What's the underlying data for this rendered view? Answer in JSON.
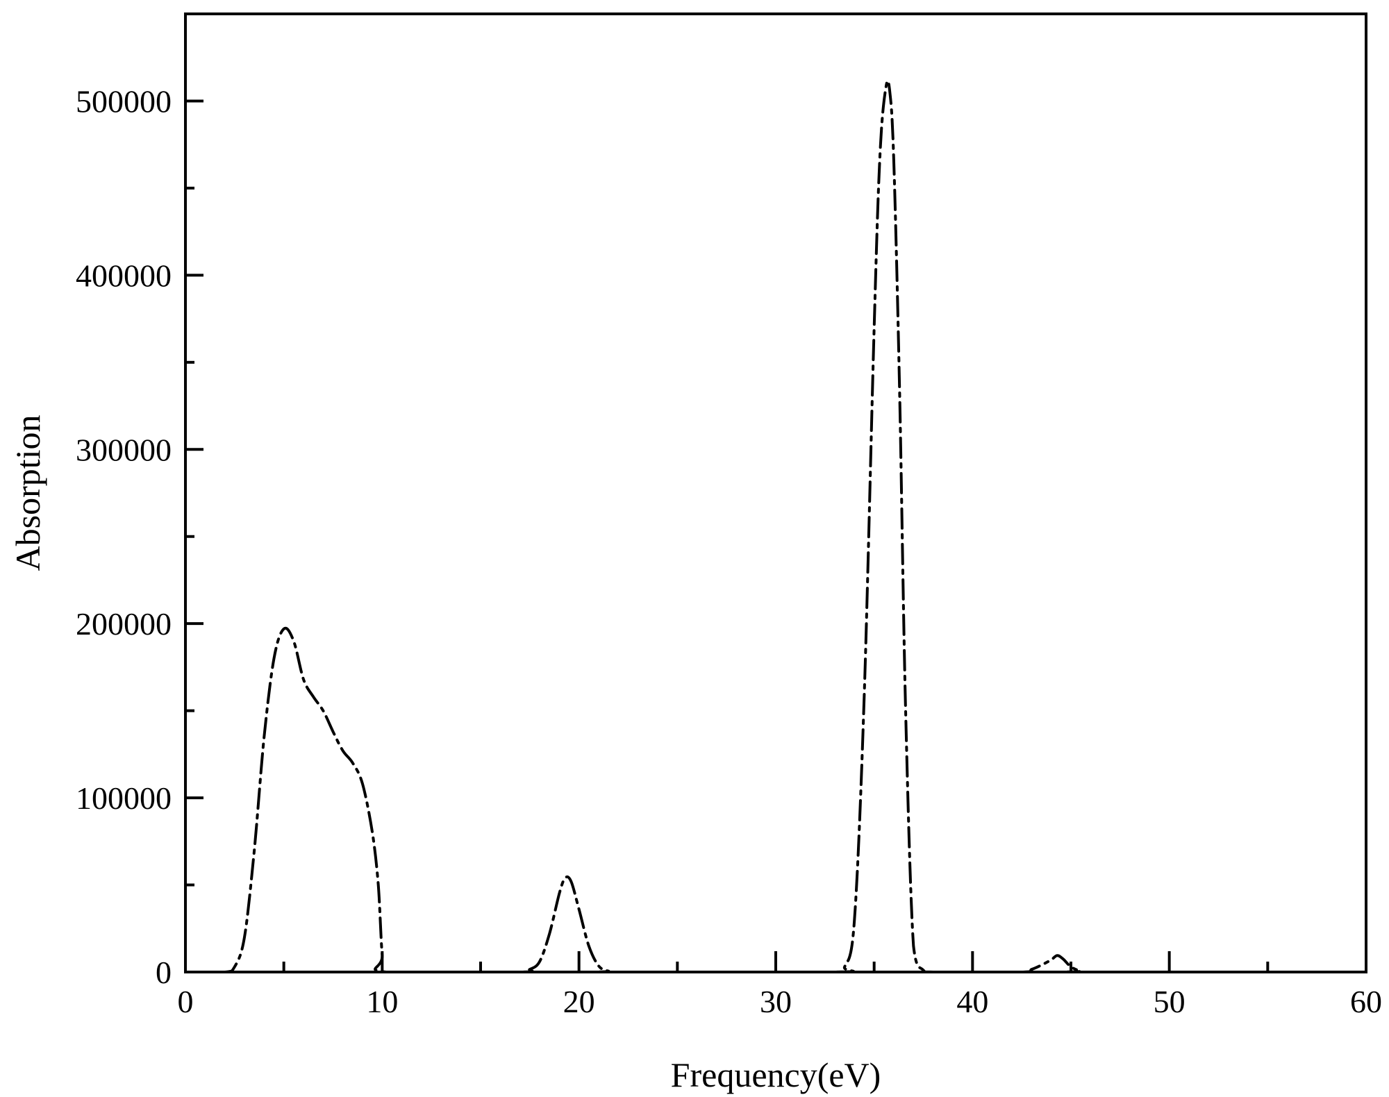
{
  "chart_data": {
    "type": "line",
    "title": "",
    "xlabel": "Frequency(eV)",
    "ylabel": "Absorption",
    "xlim": [
      0,
      60
    ],
    "ylim": [
      0,
      550000
    ],
    "x_ticks": [
      0,
      10,
      20,
      30,
      40,
      50,
      60
    ],
    "x_tick_labels": [
      "0",
      "10",
      "20",
      "30",
      "40",
      "50",
      "60"
    ],
    "y_ticks": [
      0,
      100000,
      200000,
      300000,
      400000,
      500000
    ],
    "y_tick_labels": [
      "0",
      "100000",
      "200000",
      "300000",
      "400000",
      "500000"
    ],
    "grid": false,
    "legend": "none",
    "line_style": "dash-dot",
    "line_color": "#000000",
    "series": [
      {
        "x": [
          0,
          2,
          2.5,
          3,
          3.5,
          4,
          4.5,
          5,
          5.5,
          6,
          6.5,
          7,
          7.5,
          8,
          8.5,
          9,
          9.5,
          9.8,
          10,
          10.2,
          17,
          17.5,
          18,
          18.5,
          19,
          19.3,
          19.6,
          20,
          20.5,
          21,
          21.5,
          22,
          33,
          33.5,
          34,
          34.5,
          35,
          35.3,
          35.6,
          35.8,
          36,
          36.3,
          36.6,
          37,
          37.5,
          38,
          42.5,
          43,
          43.5,
          44,
          44.3,
          44.6,
          45,
          45.5,
          46,
          60
        ],
        "y": [
          0,
          0,
          3000,
          20000,
          70000,
          135000,
          180000,
          197000,
          190000,
          168000,
          158000,
          150000,
          138000,
          127000,
          120000,
          108000,
          80000,
          50000,
          10000,
          0,
          0,
          1500,
          6000,
          22000,
          45000,
          54000,
          52000,
          36000,
          15000,
          3500,
          500,
          0,
          0,
          3000,
          30000,
          160000,
          370000,
          470000,
          508000,
          505000,
          465000,
          330000,
          150000,
          15000,
          1000,
          0,
          0,
          1500,
          4000,
          7000,
          9500,
          7500,
          3000,
          500,
          0,
          0
        ]
      }
    ]
  }
}
